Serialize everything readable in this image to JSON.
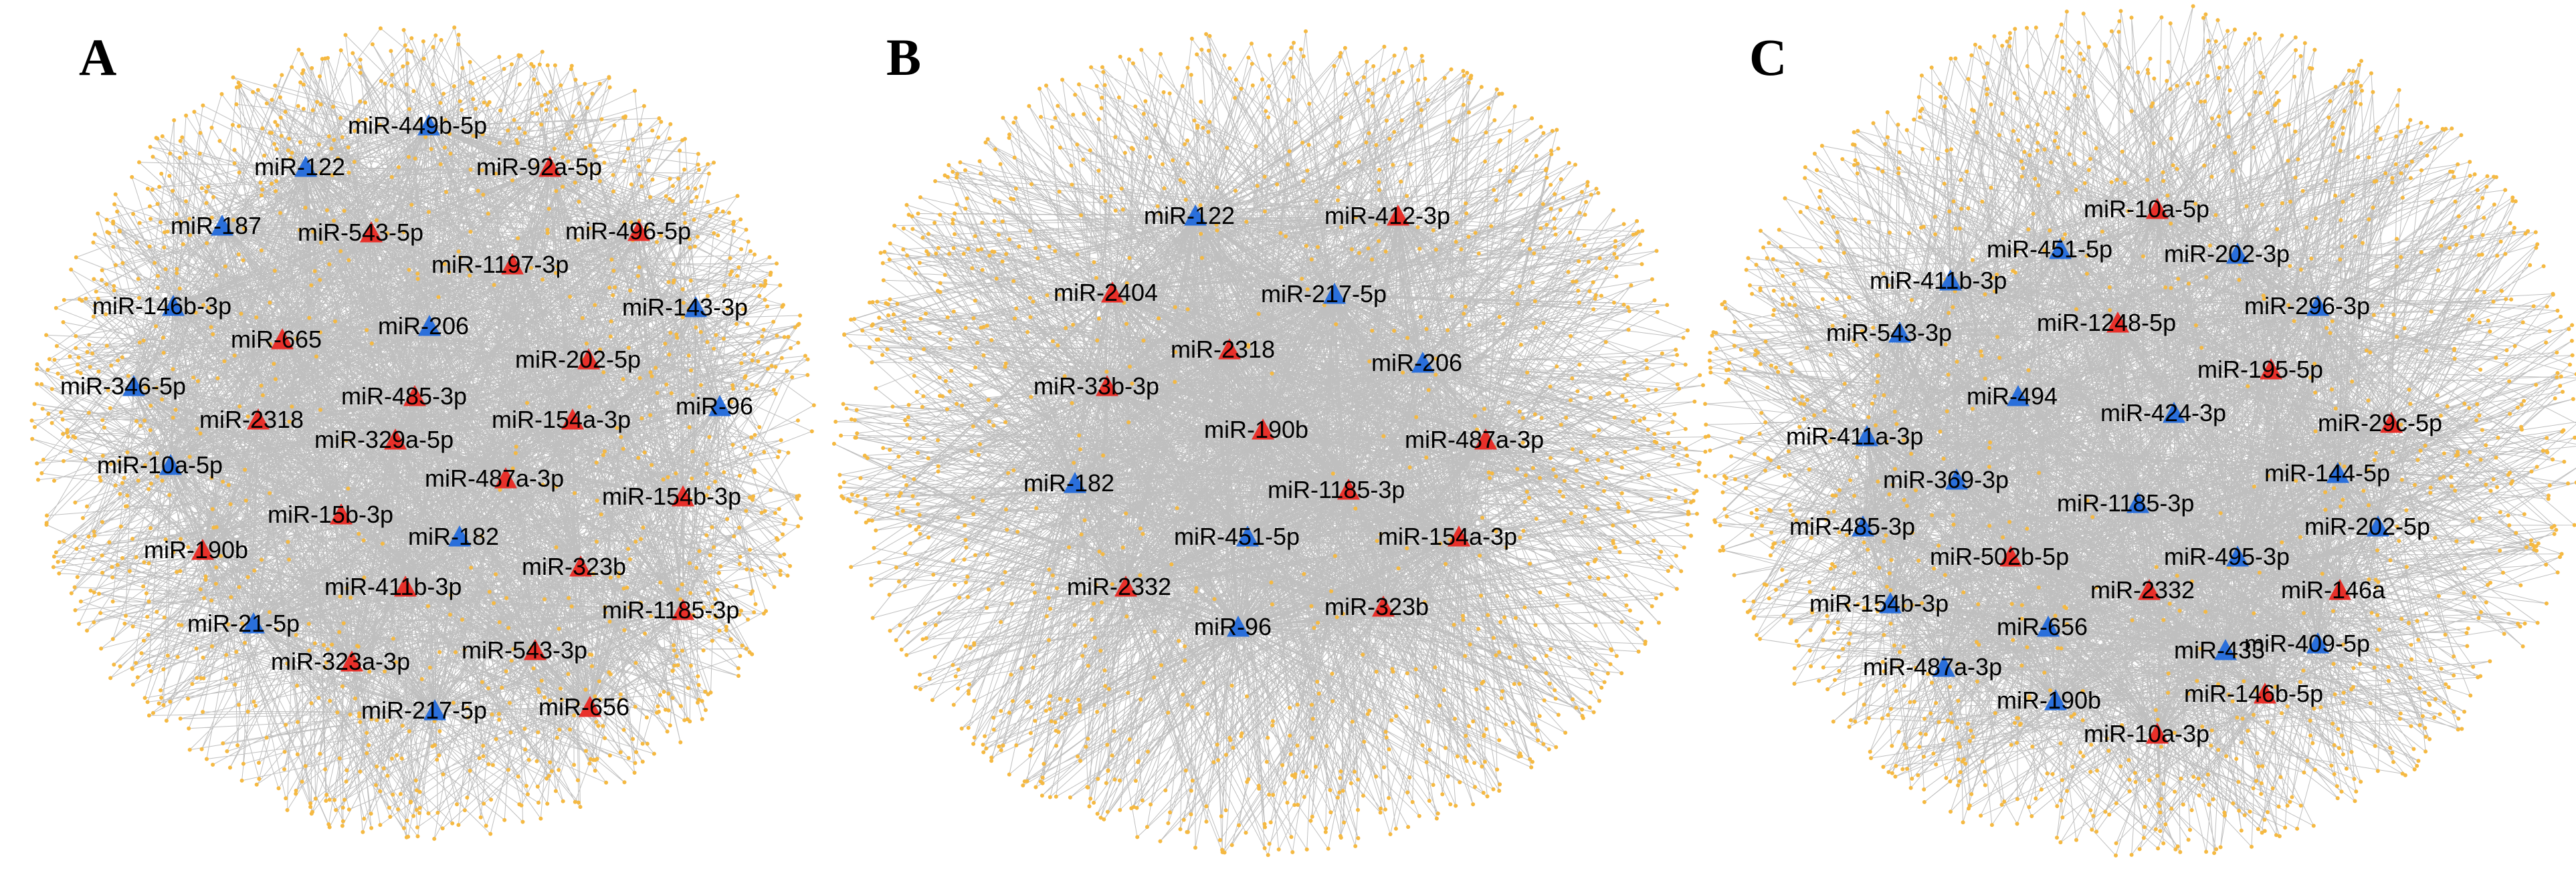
{
  "figure": {
    "colors": {
      "edge": "#8a8a8a",
      "target_node": "#f5b942",
      "up_regulated": "#e8302a",
      "down_regulated": "#2a6fdb",
      "background": "#ffffff"
    },
    "panels": [
      {
        "letter": "A",
        "nodes": [
          {
            "label": "miR-449b-5p",
            "regulation": "down"
          },
          {
            "label": "miR-122",
            "regulation": "down"
          },
          {
            "label": "miR-92a-5p",
            "regulation": "up"
          },
          {
            "label": "miR-187",
            "regulation": "down"
          },
          {
            "label": "miR-543-5p",
            "regulation": "up"
          },
          {
            "label": "miR-496-5p",
            "regulation": "up"
          },
          {
            "label": "miR-1197-3p",
            "regulation": "up"
          },
          {
            "label": "miR-146b-3p",
            "regulation": "down"
          },
          {
            "label": "miR-143-3p",
            "regulation": "down"
          },
          {
            "label": "miR-665",
            "regulation": "up"
          },
          {
            "label": "miR-206",
            "regulation": "down"
          },
          {
            "label": "miR-202-5p",
            "regulation": "up"
          },
          {
            "label": "miR-346-5p",
            "regulation": "down"
          },
          {
            "label": "miR-485-3p",
            "regulation": "up"
          },
          {
            "label": "miR-96",
            "regulation": "down"
          },
          {
            "label": "miR-2318",
            "regulation": "up"
          },
          {
            "label": "miR-154a-3p",
            "regulation": "up"
          },
          {
            "label": "miR-329a-5p",
            "regulation": "up"
          },
          {
            "label": "miR-10a-5p",
            "regulation": "down"
          },
          {
            "label": "miR-487a-3p",
            "regulation": "up"
          },
          {
            "label": "miR-154b-3p",
            "regulation": "up"
          },
          {
            "label": "miR-15b-3p",
            "regulation": "up"
          },
          {
            "label": "miR-182",
            "regulation": "down"
          },
          {
            "label": "miR-190b",
            "regulation": "up"
          },
          {
            "label": "miR-323b",
            "regulation": "up"
          },
          {
            "label": "miR-411b-3p",
            "regulation": "up"
          },
          {
            "label": "miR-1185-3p",
            "regulation": "up"
          },
          {
            "label": "miR-21-5p",
            "regulation": "down"
          },
          {
            "label": "miR-543-3p",
            "regulation": "up"
          },
          {
            "label": "miR-323a-3p",
            "regulation": "up"
          },
          {
            "label": "miR-217-5p",
            "regulation": "down"
          },
          {
            "label": "miR-656",
            "regulation": "up"
          }
        ]
      },
      {
        "letter": "B",
        "nodes": [
          {
            "label": "miR-122",
            "regulation": "down"
          },
          {
            "label": "miR-412-3p",
            "regulation": "up"
          },
          {
            "label": "miR-2404",
            "regulation": "up"
          },
          {
            "label": "miR-217-5p",
            "regulation": "down"
          },
          {
            "label": "miR-2318",
            "regulation": "up"
          },
          {
            "label": "miR-206",
            "regulation": "down"
          },
          {
            "label": "miR-33b-3p",
            "regulation": "up"
          },
          {
            "label": "miR-190b",
            "regulation": "up"
          },
          {
            "label": "miR-487a-3p",
            "regulation": "up"
          },
          {
            "label": "miR-182",
            "regulation": "down"
          },
          {
            "label": "miR-1185-3p",
            "regulation": "up"
          },
          {
            "label": "miR-451-5p",
            "regulation": "down"
          },
          {
            "label": "miR-154a-3p",
            "regulation": "up"
          },
          {
            "label": "miR-2332",
            "regulation": "up"
          },
          {
            "label": "miR-323b",
            "regulation": "up"
          },
          {
            "label": "miR-96",
            "regulation": "down"
          }
        ]
      },
      {
        "letter": "C",
        "nodes": [
          {
            "label": "miR-10a-5p",
            "regulation": "up"
          },
          {
            "label": "miR-451-5p",
            "regulation": "down"
          },
          {
            "label": "miR-202-3p",
            "regulation": "down"
          },
          {
            "label": "miR-411b-3p",
            "regulation": "down"
          },
          {
            "label": "miR-1248-5p",
            "regulation": "up"
          },
          {
            "label": "miR-296-3p",
            "regulation": "down"
          },
          {
            "label": "miR-543-3p",
            "regulation": "down"
          },
          {
            "label": "miR-195-5p",
            "regulation": "up"
          },
          {
            "label": "miR-494",
            "regulation": "down"
          },
          {
            "label": "miR-424-3p",
            "regulation": "down"
          },
          {
            "label": "miR-29c-5p",
            "regulation": "up"
          },
          {
            "label": "miR-411a-3p",
            "regulation": "down"
          },
          {
            "label": "miR-369-3p",
            "regulation": "down"
          },
          {
            "label": "miR-144-5p",
            "regulation": "down"
          },
          {
            "label": "miR-1185-3p",
            "regulation": "down"
          },
          {
            "label": "miR-485-3p",
            "regulation": "down"
          },
          {
            "label": "miR-202-5p",
            "regulation": "down"
          },
          {
            "label": "miR-502b-5p",
            "regulation": "up"
          },
          {
            "label": "miR-495-3p",
            "regulation": "down"
          },
          {
            "label": "miR-2332",
            "regulation": "up"
          },
          {
            "label": "miR-146a",
            "regulation": "up"
          },
          {
            "label": "miR-154b-3p",
            "regulation": "down"
          },
          {
            "label": "miR-656",
            "regulation": "down"
          },
          {
            "label": "miR-433",
            "regulation": "down"
          },
          {
            "label": "miR-409-5p",
            "regulation": "down"
          },
          {
            "label": "miR-487a-3p",
            "regulation": "down"
          },
          {
            "label": "miR-146b-5p",
            "regulation": "up"
          },
          {
            "label": "miR-190b",
            "regulation": "down"
          },
          {
            "label": "miR-10a-3p",
            "regulation": "up"
          }
        ]
      }
    ]
  }
}
